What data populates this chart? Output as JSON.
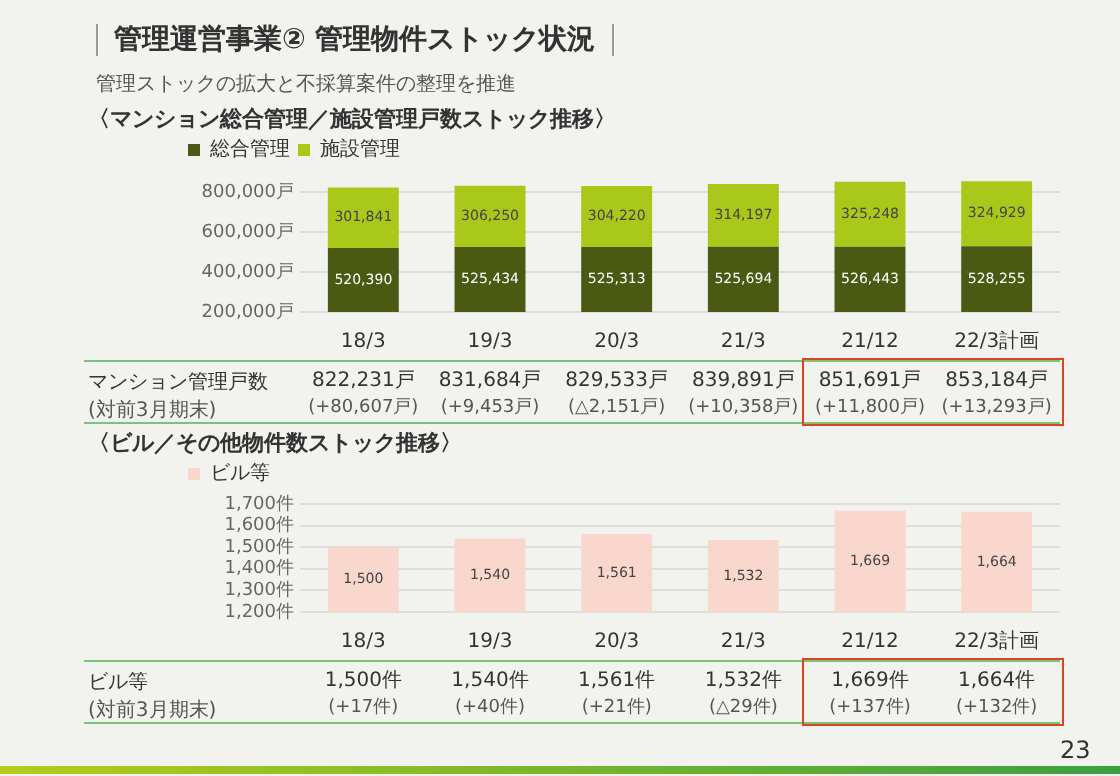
{
  "chart_data": [
    {
      "type": "bar",
      "title": "〈マンション総合管理／施設管理戸数ストック推移〉",
      "categories": [
        "18/3",
        "19/3",
        "20/3",
        "21/3",
        "21/12",
        "22/3計画"
      ],
      "stacked": true,
      "legend": "top left",
      "grid": "y",
      "series": [
        {
          "name": "総合管理",
          "color": "#4b5a12",
          "values": [
            520390,
            525434,
            525313,
            525694,
            526443,
            528255
          ],
          "value_labels": [
            "520,390",
            "525,434",
            "525,313",
            "525,694",
            "526,443",
            "528,255"
          ]
        },
        {
          "name": "施設管理",
          "color": "#a9c81a",
          "values": [
            301841,
            306250,
            304220,
            314197,
            325248,
            324929
          ],
          "value_labels": [
            "301,841",
            "306,250",
            "304,220",
            "314,197",
            "325,248",
            "324,929"
          ]
        }
      ],
      "ylim": [
        200000,
        860000
      ],
      "yticks": [
        {
          "value": 200000,
          "label": "200,000戸"
        },
        {
          "value": 400000,
          "label": "400,000戸"
        },
        {
          "value": 600000,
          "label": "600,000戸"
        },
        {
          "value": 800000,
          "label": "800,000戸"
        }
      ],
      "totals": [
        "822,231戸",
        "831,684戸",
        "829,533戸",
        "839,891戸",
        "851,691戸",
        "853,184戸"
      ],
      "annotations": [
        "管理運営事業② 管理物件ストック状況",
        "管理ストックの拡大と不採算案件の整理を推進",
        "マンション管理戸数",
        "(対前3月期末)",
        "(+80,607戸)",
        "(+9,453戸)",
        "(△2,151戸)",
        "(+10,358戸)",
        "(+11,800戸)",
        "(+13,293戸)"
      ]
    },
    {
      "type": "bar",
      "title": "〈ビル／その他物件数ストック推移〉",
      "categories": [
        "18/3",
        "19/3",
        "20/3",
        "21/3",
        "21/12",
        "22/3計画"
      ],
      "legend": "top left",
      "grid": "y",
      "series": [
        {
          "name": "ビル等",
          "color": "#f9d7cd",
          "values": [
            1500,
            1540,
            1561,
            1532,
            1669,
            1664
          ],
          "value_labels": [
            "1,500",
            "1,540",
            "1,561",
            "1,532",
            "1,669",
            "1,664"
          ]
        }
      ],
      "ylim": [
        1200,
        1700
      ],
      "yticks": [
        {
          "value": 1200,
          "label": "1,200件"
        },
        {
          "value": 1300,
          "label": "1,300件"
        },
        {
          "value": 1400,
          "label": "1,400件"
        },
        {
          "value": 1500,
          "label": "1,500件"
        },
        {
          "value": 1600,
          "label": "1,600件"
        },
        {
          "value": 1700,
          "label": "1,700件"
        }
      ],
      "totals": [
        "1,500件",
        "1,540件",
        "1,561件",
        "1,532件",
        "1,669件",
        "1,664件"
      ],
      "annotations": [
        "ビル等",
        "(対前3月期末)",
        "23",
        "(+17件)",
        "(+40件)",
        "(+21件)",
        "(△29件)",
        "(+137件)",
        "(+132件)"
      ]
    }
  ]
}
